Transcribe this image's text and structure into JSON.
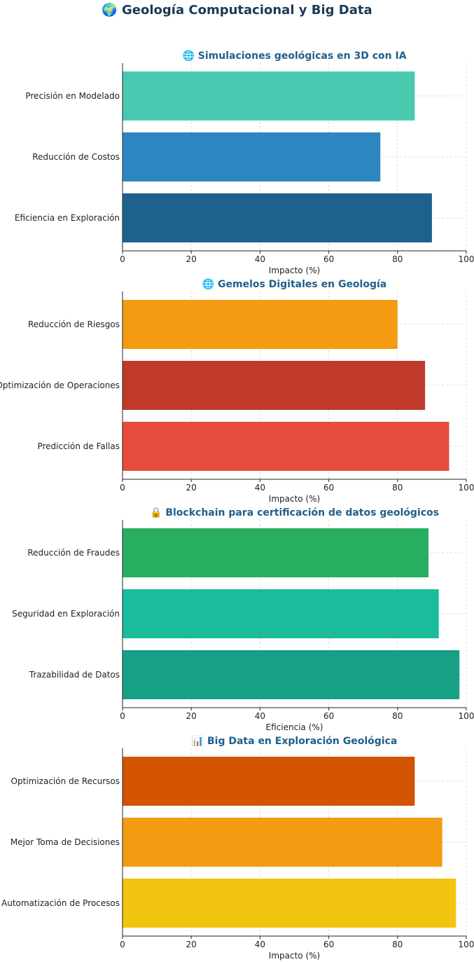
{
  "title": "🌍 Geología Computacional y Big Data",
  "chart_data": [
    {
      "type": "bar",
      "orientation": "horizontal",
      "title": "🌐 Simulaciones geológicas en 3D con IA",
      "categories": [
        "Precisión en Modelado",
        "Reducción de Costos",
        "Eficiencia en Exploración"
      ],
      "values": [
        85,
        75,
        90
      ],
      "colors": [
        "#48c9b0",
        "#2e86c1",
        "#1f618d"
      ],
      "xlabel": "Impacto (%)",
      "xlim": [
        0,
        100
      ],
      "xticks": [
        "0",
        "20",
        "40",
        "60",
        "80",
        "100"
      ],
      "grid": true
    },
    {
      "type": "bar",
      "orientation": "horizontal",
      "title": "🌐 Gemelos Digitales en Geología",
      "categories": [
        "Reducción de Riesgos",
        "Optimización de Operaciones",
        "Predicción de Fallas"
      ],
      "values": [
        80,
        88,
        95
      ],
      "colors": [
        "#f39c12",
        "#c0392b",
        "#e74c3c"
      ],
      "xlabel": "Impacto (%)",
      "xlim": [
        0,
        100
      ],
      "xticks": [
        "0",
        "20",
        "40",
        "60",
        "80",
        "100"
      ],
      "grid": true
    },
    {
      "type": "bar",
      "orientation": "horizontal",
      "title": "🔒 Blockchain para certificación de datos geológicos",
      "categories": [
        "Reducción de Fraudes",
        "Seguridad en Exploración",
        "Trazabilidad de Datos"
      ],
      "values": [
        89,
        92,
        98
      ],
      "colors": [
        "#27ae60",
        "#1abc9c",
        "#16a085"
      ],
      "xlabel": "Eficiencia (%)",
      "xlim": [
        0,
        100
      ],
      "xticks": [
        "0",
        "20",
        "40",
        "60",
        "80",
        "100"
      ],
      "grid": true
    },
    {
      "type": "bar",
      "orientation": "horizontal",
      "title": "📊 Big Data en Exploración Geológica",
      "categories": [
        "Optimización de Recursos",
        "Mejor Toma de Decisiones",
        "Automatización de Procesos"
      ],
      "values": [
        85,
        93,
        97
      ],
      "colors": [
        "#d35400",
        "#f39c12",
        "#f1c40f"
      ],
      "xlabel": "Impacto (%)",
      "xlim": [
        0,
        100
      ],
      "xticks": [
        "0",
        "20",
        "40",
        "60",
        "80",
        "100"
      ],
      "grid": true
    }
  ]
}
